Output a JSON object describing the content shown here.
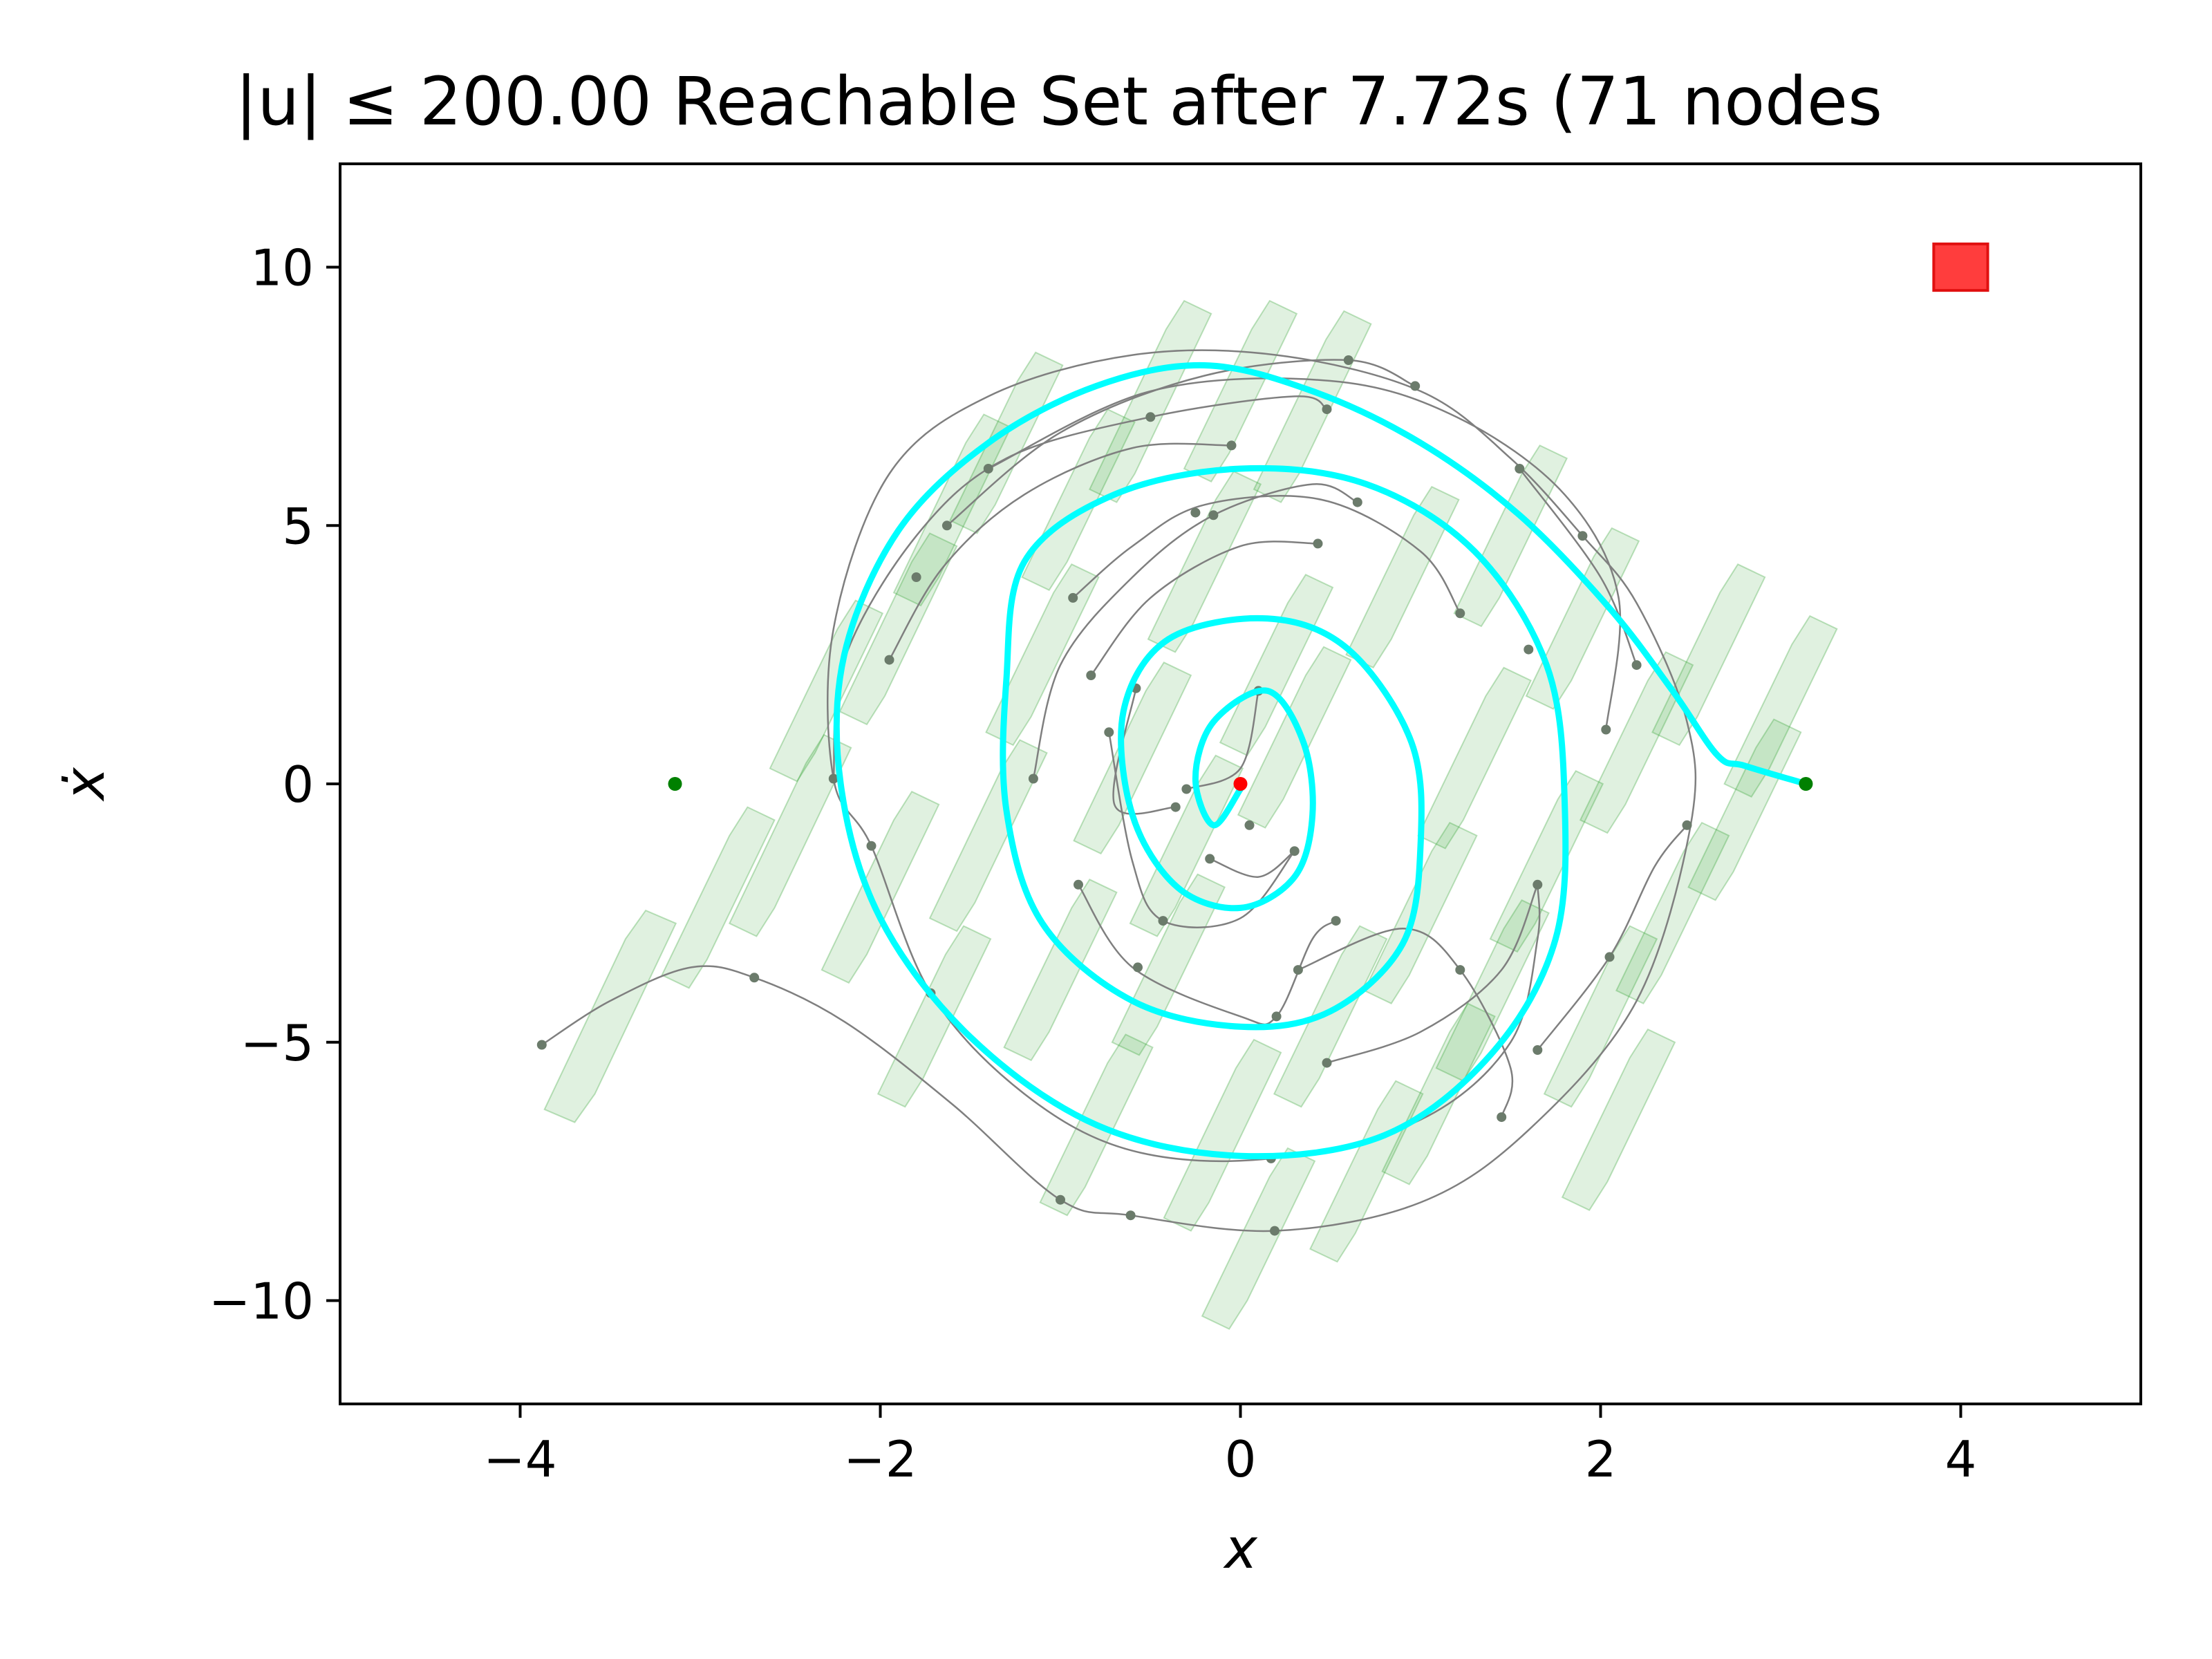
{
  "chart_data": {
    "type": "scatter",
    "title": "|u| ≤ 200.00 Reachable Set after 7.72s (71 nodes",
    "xlabel": "x",
    "ylabel": "ẋ",
    "xlim": [
      -5,
      5
    ],
    "ylim": [
      -12,
      12
    ],
    "xticks": [
      -4,
      -2,
      0,
      2,
      4
    ],
    "yticks": [
      -10,
      -5,
      0,
      5,
      10
    ],
    "xtick_labels": [
      "−4",
      "−2",
      "0",
      "2",
      "4"
    ],
    "ytick_labels": [
      "−10",
      "−5",
      "0",
      "5",
      "10"
    ],
    "grid": false,
    "colors": {
      "best_path": "#00ffff",
      "tree_edges": "#7f7f7f",
      "nodes": "#6b7b6b",
      "reachable_sets": "#2ca02c",
      "goal_points": "#008000",
      "start_point": "#ff0000",
      "goal_region": "#ff3333"
    },
    "goal_region": {
      "x": 4.0,
      "y": 10.0,
      "half_width": 0.15,
      "half_height": 0.45
    },
    "start_point": {
      "x": 0.0,
      "y": 0.0
    },
    "goal_points": [
      {
        "x": -3.14,
        "y": 0.0
      },
      {
        "x": 3.14,
        "y": 0.0
      }
    ],
    "nodes": [
      [
        -3.88,
        -5.05
      ],
      [
        -2.7,
        -3.75
      ],
      [
        -2.26,
        0.1
      ],
      [
        -2.05,
        -1.2
      ],
      [
        -1.95,
        2.4
      ],
      [
        -1.8,
        4.0
      ],
      [
        -1.63,
        5.0
      ],
      [
        -1.4,
        6.1
      ],
      [
        -1.72,
        -4.05
      ],
      [
        -1.15,
        0.1
      ],
      [
        -0.93,
        3.6
      ],
      [
        -0.83,
        2.1
      ],
      [
        -0.9,
        -1.95
      ],
      [
        -0.73,
        1.0
      ],
      [
        -0.57,
        -3.55
      ],
      [
        -0.58,
        1.85
      ],
      [
        -0.43,
        -2.65
      ],
      [
        -0.5,
        7.1
      ],
      [
        -0.36,
        -0.45
      ],
      [
        -0.25,
        5.25
      ],
      [
        -0.15,
        5.2
      ],
      [
        -0.17,
        -1.45
      ],
      [
        -0.05,
        6.55
      ],
      [
        0.43,
        4.65
      ],
      [
        0.48,
        7.25
      ],
      [
        0.6,
        8.2
      ],
      [
        0.97,
        7.7
      ],
      [
        0.65,
        5.45
      ],
      [
        0.32,
        -3.6
      ],
      [
        0.53,
        -2.65
      ],
      [
        0.3,
        -1.3
      ],
      [
        0.2,
        -4.5
      ],
      [
        1.22,
        3.3
      ],
      [
        1.6,
        2.6
      ],
      [
        2.03,
        1.05
      ],
      [
        2.2,
        2.3
      ],
      [
        1.45,
        -6.45
      ],
      [
        1.65,
        -5.15
      ],
      [
        2.05,
        -3.35
      ],
      [
        2.48,
        -0.8
      ],
      [
        1.65,
        -1.95
      ],
      [
        1.22,
        -3.6
      ],
      [
        0.48,
        -5.4
      ],
      [
        0.17,
        -7.25
      ],
      [
        0.19,
        -8.65
      ],
      [
        -0.61,
        -8.35
      ],
      [
        -1.0,
        -8.05
      ],
      [
        1.55,
        6.1
      ],
      [
        1.9,
        4.8
      ],
      [
        -0.3,
        -0.1
      ],
      [
        0.1,
        1.8
      ],
      [
        0.05,
        -0.8
      ]
    ],
    "tree_edges": [
      [
        [
          -3.88,
          -5.05
        ],
        [
          -3.5,
          -4.2
        ],
        [
          -3.05,
          -3.55
        ],
        [
          -2.7,
          -3.75
        ],
        [
          -2.2,
          -4.6
        ],
        [
          -1.6,
          -6.2
        ],
        [
          -1.0,
          -8.05
        ],
        [
          -0.61,
          -8.35
        ],
        [
          0.19,
          -8.65
        ],
        [
          1.0,
          -8.1
        ],
        [
          1.6,
          -6.7
        ],
        [
          2.2,
          -4.2
        ],
        [
          2.5,
          -0.8
        ],
        [
          2.48,
          1.2
        ],
        [
          2.2,
          3.5
        ],
        [
          1.9,
          4.8
        ],
        [
          1.5,
          6.3
        ],
        [
          1.0,
          7.6
        ],
        [
          0.2,
          8.3
        ],
        [
          -0.6,
          8.3
        ],
        [
          -1.4,
          7.5
        ],
        [
          -1.95,
          6.0
        ],
        [
          -2.26,
          3.0
        ],
        [
          -2.26,
          0.1
        ],
        [
          -2.05,
          -1.2
        ],
        [
          -1.72,
          -4.05
        ],
        [
          -1.2,
          -6.0
        ],
        [
          -0.6,
          -7.1
        ],
        [
          0.17,
          -7.25
        ],
        [
          1.0,
          -6.5
        ],
        [
          1.5,
          -5.0
        ],
        [
          1.65,
          -3.0
        ],
        [
          1.65,
          -1.95
        ]
      ],
      [
        [
          -2.26,
          0.1
        ],
        [
          -2.2,
          2.4
        ],
        [
          -1.8,
          4.8
        ],
        [
          -1.3,
          6.3
        ],
        [
          -0.5,
          7.1
        ],
        [
          0.3,
          7.5
        ],
        [
          0.48,
          7.25
        ]
      ],
      [
        [
          -1.95,
          2.4
        ],
        [
          -1.65,
          4.2
        ],
        [
          -1.2,
          5.6
        ],
        [
          -0.6,
          6.5
        ],
        [
          -0.05,
          6.55
        ]
      ],
      [
        [
          -1.63,
          5.0
        ],
        [
          -1.0,
          6.8
        ],
        [
          -0.2,
          7.9
        ],
        [
          0.6,
          8.2
        ],
        [
          0.97,
          7.7
        ]
      ],
      [
        [
          -1.4,
          6.1
        ],
        [
          -0.5,
          7.6
        ],
        [
          0.5,
          7.8
        ],
        [
          1.2,
          7.1
        ],
        [
          1.8,
          5.6
        ],
        [
          2.1,
          3.6
        ],
        [
          2.03,
          1.05
        ]
      ],
      [
        [
          -1.15,
          0.1
        ],
        [
          -1.0,
          2.3
        ],
        [
          -0.6,
          4.0
        ],
        [
          -0.15,
          5.2
        ],
        [
          0.4,
          5.8
        ],
        [
          0.65,
          5.45
        ]
      ],
      [
        [
          -0.93,
          3.6
        ],
        [
          -0.6,
          4.6
        ],
        [
          -0.2,
          5.4
        ],
        [
          0.45,
          5.5
        ],
        [
          1.0,
          4.5
        ],
        [
          1.22,
          3.3
        ]
      ],
      [
        [
          -0.83,
          2.1
        ],
        [
          -0.5,
          3.6
        ],
        [
          0.0,
          4.6
        ],
        [
          0.43,
          4.65
        ]
      ],
      [
        [
          -0.9,
          -1.95
        ],
        [
          -0.6,
          -3.55
        ],
        [
          0.0,
          -4.5
        ],
        [
          0.2,
          -4.5
        ],
        [
          0.4,
          -3.0
        ],
        [
          0.53,
          -2.65
        ]
      ],
      [
        [
          -0.73,
          1.0
        ],
        [
          -0.6,
          -1.5
        ],
        [
          -0.43,
          -2.65
        ],
        [
          0.0,
          -2.6
        ],
        [
          0.3,
          -1.3
        ]
      ],
      [
        [
          -0.58,
          1.85
        ],
        [
          -0.7,
          -0.4
        ],
        [
          -0.36,
          -0.45
        ]
      ],
      [
        [
          -0.17,
          -1.45
        ],
        [
          0.1,
          -1.8
        ],
        [
          0.3,
          -1.3
        ]
      ],
      [
        [
          0.48,
          -5.4
        ],
        [
          1.0,
          -4.8
        ],
        [
          1.45,
          -3.6
        ],
        [
          1.65,
          -1.95
        ]
      ],
      [
        [
          0.32,
          -3.6
        ],
        [
          0.9,
          -2.8
        ],
        [
          1.22,
          -3.6
        ],
        [
          1.5,
          -5.5
        ],
        [
          1.45,
          -6.45
        ]
      ],
      [
        [
          1.65,
          -5.15
        ],
        [
          2.05,
          -3.35
        ],
        [
          2.3,
          -1.6
        ],
        [
          2.48,
          -0.8
        ]
      ],
      [
        [
          -0.3,
          -0.1
        ],
        [
          0.0,
          0.3
        ],
        [
          0.1,
          1.8
        ]
      ],
      [
        [
          1.55,
          6.1
        ],
        [
          2.0,
          4.0
        ],
        [
          2.2,
          2.3
        ]
      ]
    ],
    "best_path": [
      [
        3.14,
        0.0
      ],
      [
        2.8,
        0.35
      ],
      [
        2.65,
        0.55
      ],
      [
        2.4,
        1.8
      ],
      [
        2.05,
        3.4
      ],
      [
        1.55,
        5.2
      ],
      [
        1.0,
        6.6
      ],
      [
        0.4,
        7.6
      ],
      [
        -0.2,
        8.1
      ],
      [
        -0.8,
        7.7
      ],
      [
        -1.4,
        6.6
      ],
      [
        -1.9,
        4.9
      ],
      [
        -2.2,
        2.5
      ],
      [
        -2.22,
        0.0
      ],
      [
        -2.0,
        -2.6
      ],
      [
        -1.5,
        -4.9
      ],
      [
        -0.8,
        -6.6
      ],
      [
        0.0,
        -7.2
      ],
      [
        0.8,
        -6.8
      ],
      [
        1.4,
        -5.2
      ],
      [
        1.75,
        -3.0
      ],
      [
        1.8,
        -0.3
      ],
      [
        1.7,
        2.3
      ],
      [
        1.3,
        4.5
      ],
      [
        0.7,
        5.8
      ],
      [
        0.0,
        6.1
      ],
      [
        -0.7,
        5.6
      ],
      [
        -1.2,
        4.3
      ],
      [
        -1.3,
        2.0
      ],
      [
        -1.3,
        -0.5
      ],
      [
        -1.1,
        -2.7
      ],
      [
        -0.6,
        -4.2
      ],
      [
        0.0,
        -4.7
      ],
      [
        0.5,
        -4.4
      ],
      [
        0.9,
        -3.1
      ],
      [
        1.0,
        -1.2
      ],
      [
        0.95,
        0.8
      ],
      [
        0.6,
        2.6
      ],
      [
        0.15,
        3.2
      ],
      [
        -0.4,
        2.8
      ],
      [
        -0.65,
        1.4
      ],
      [
        -0.6,
        -0.6
      ],
      [
        -0.35,
        -2.0
      ],
      [
        0.0,
        -2.4
      ],
      [
        0.3,
        -1.8
      ],
      [
        0.4,
        -0.6
      ],
      [
        0.35,
        0.8
      ],
      [
        0.15,
        1.8
      ],
      [
        -0.15,
        1.2
      ],
      [
        -0.25,
        0.1
      ],
      [
        -0.15,
        -0.8
      ],
      [
        0.0,
        -0.1
      ]
    ],
    "reachable_sets": [
      {
        "cx": -3.5,
        "cy": -4.5,
        "width": 0.28,
        "slope": 8.0,
        "len": 3.6
      },
      {
        "cx": -2.9,
        "cy": -2.2,
        "width": 0.25,
        "slope": 8.0,
        "len": 3.0
      },
      {
        "cx": -2.5,
        "cy": -1.0,
        "width": 0.25,
        "slope": 8.0,
        "len": 3.4
      },
      {
        "cx": -2.3,
        "cy": 1.8,
        "width": 0.25,
        "slope": 8.0,
        "len": 3.0
      },
      {
        "cx": -2.0,
        "cy": -2.0,
        "width": 0.25,
        "slope": 8.0,
        "len": 3.2
      },
      {
        "cx": -1.9,
        "cy": 3.0,
        "width": 0.25,
        "slope": 8.0,
        "len": 3.2
      },
      {
        "cx": -1.7,
        "cy": -4.5,
        "width": 0.25,
        "slope": 8.0,
        "len": 3.0
      },
      {
        "cx": -1.6,
        "cy": 5.3,
        "width": 0.25,
        "slope": 8.0,
        "len": 3.2
      },
      {
        "cx": -1.4,
        "cy": -1.0,
        "width": 0.25,
        "slope": 8.0,
        "len": 3.2
      },
      {
        "cx": -1.3,
        "cy": 6.6,
        "width": 0.25,
        "slope": 8.0,
        "len": 3.0
      },
      {
        "cx": -1.1,
        "cy": 2.5,
        "width": 0.25,
        "slope": 8.0,
        "len": 3.0
      },
      {
        "cx": -1.0,
        "cy": -3.6,
        "width": 0.25,
        "slope": 8.0,
        "len": 3.0
      },
      {
        "cx": -0.9,
        "cy": 5.5,
        "width": 0.25,
        "slope": 8.0,
        "len": 3.0
      },
      {
        "cx": -0.8,
        "cy": -6.6,
        "width": 0.25,
        "slope": 8.0,
        "len": 3.0
      },
      {
        "cx": -0.6,
        "cy": 0.5,
        "width": 0.25,
        "slope": 8.0,
        "len": 3.2
      },
      {
        "cx": -0.5,
        "cy": 7.4,
        "width": 0.25,
        "slope": 8.0,
        "len": 3.4
      },
      {
        "cx": -0.4,
        "cy": -3.5,
        "width": 0.25,
        "slope": 8.0,
        "len": 3.0
      },
      {
        "cx": -0.2,
        "cy": 4.3,
        "width": 0.25,
        "slope": 8.0,
        "len": 3.0
      },
      {
        "cx": -0.1,
        "cy": -6.8,
        "width": 0.25,
        "slope": 8.0,
        "len": 3.2
      },
      {
        "cx": 0.0,
        "cy": 7.6,
        "width": 0.25,
        "slope": 8.0,
        "len": 3.0
      },
      {
        "cx": 0.1,
        "cy": -8.8,
        "width": 0.25,
        "slope": 8.0,
        "len": 3.0
      },
      {
        "cx": 0.2,
        "cy": 2.3,
        "width": 0.25,
        "slope": 8.0,
        "len": 3.0
      },
      {
        "cx": 0.4,
        "cy": 7.3,
        "width": 0.25,
        "slope": 8.0,
        "len": 3.2
      },
      {
        "cx": 0.5,
        "cy": -4.5,
        "width": 0.25,
        "slope": 8.0,
        "len": 3.0
      },
      {
        "cx": 0.7,
        "cy": -7.5,
        "width": 0.25,
        "slope": 8.0,
        "len": 3.0
      },
      {
        "cx": 0.9,
        "cy": 4.0,
        "width": 0.25,
        "slope": 8.0,
        "len": 3.0
      },
      {
        "cx": 1.0,
        "cy": -2.5,
        "width": 0.25,
        "slope": 8.0,
        "len": 3.0
      },
      {
        "cx": 1.1,
        "cy": -6.0,
        "width": 0.25,
        "slope": 8.0,
        "len": 3.0
      },
      {
        "cx": 1.3,
        "cy": 0.5,
        "width": 0.25,
        "slope": 8.0,
        "len": 3.0
      },
      {
        "cx": 1.4,
        "cy": -4.0,
        "width": 0.25,
        "slope": 8.0,
        "len": 3.0
      },
      {
        "cx": 1.5,
        "cy": 4.8,
        "width": 0.25,
        "slope": 8.0,
        "len": 3.0
      },
      {
        "cx": 1.7,
        "cy": -1.5,
        "width": 0.25,
        "slope": 8.0,
        "len": 3.0
      },
      {
        "cx": 1.9,
        "cy": 3.2,
        "width": 0.25,
        "slope": 8.0,
        "len": 3.0
      },
      {
        "cx": 2.0,
        "cy": -4.5,
        "width": 0.25,
        "slope": 8.0,
        "len": 3.0
      },
      {
        "cx": 2.2,
        "cy": 0.8,
        "width": 0.25,
        "slope": 8.0,
        "len": 3.0
      },
      {
        "cx": 2.4,
        "cy": -2.5,
        "width": 0.25,
        "slope": 8.0,
        "len": 3.0
      },
      {
        "cx": 2.6,
        "cy": 2.5,
        "width": 0.25,
        "slope": 8.0,
        "len": 3.0
      },
      {
        "cx": 2.8,
        "cy": -0.5,
        "width": 0.25,
        "slope": 8.0,
        "len": 3.0
      },
      {
        "cx": 3.0,
        "cy": 1.5,
        "width": 0.25,
        "slope": 8.0,
        "len": 3.0
      },
      {
        "cx": 2.1,
        "cy": -6.5,
        "width": 0.25,
        "slope": 8.0,
        "len": 3.0
      },
      {
        "cx": -0.3,
        "cy": -1.2,
        "width": 0.25,
        "slope": 8.0,
        "len": 3.0
      },
      {
        "cx": 0.3,
        "cy": 0.9,
        "width": 0.25,
        "slope": 8.0,
        "len": 3.0
      }
    ]
  }
}
